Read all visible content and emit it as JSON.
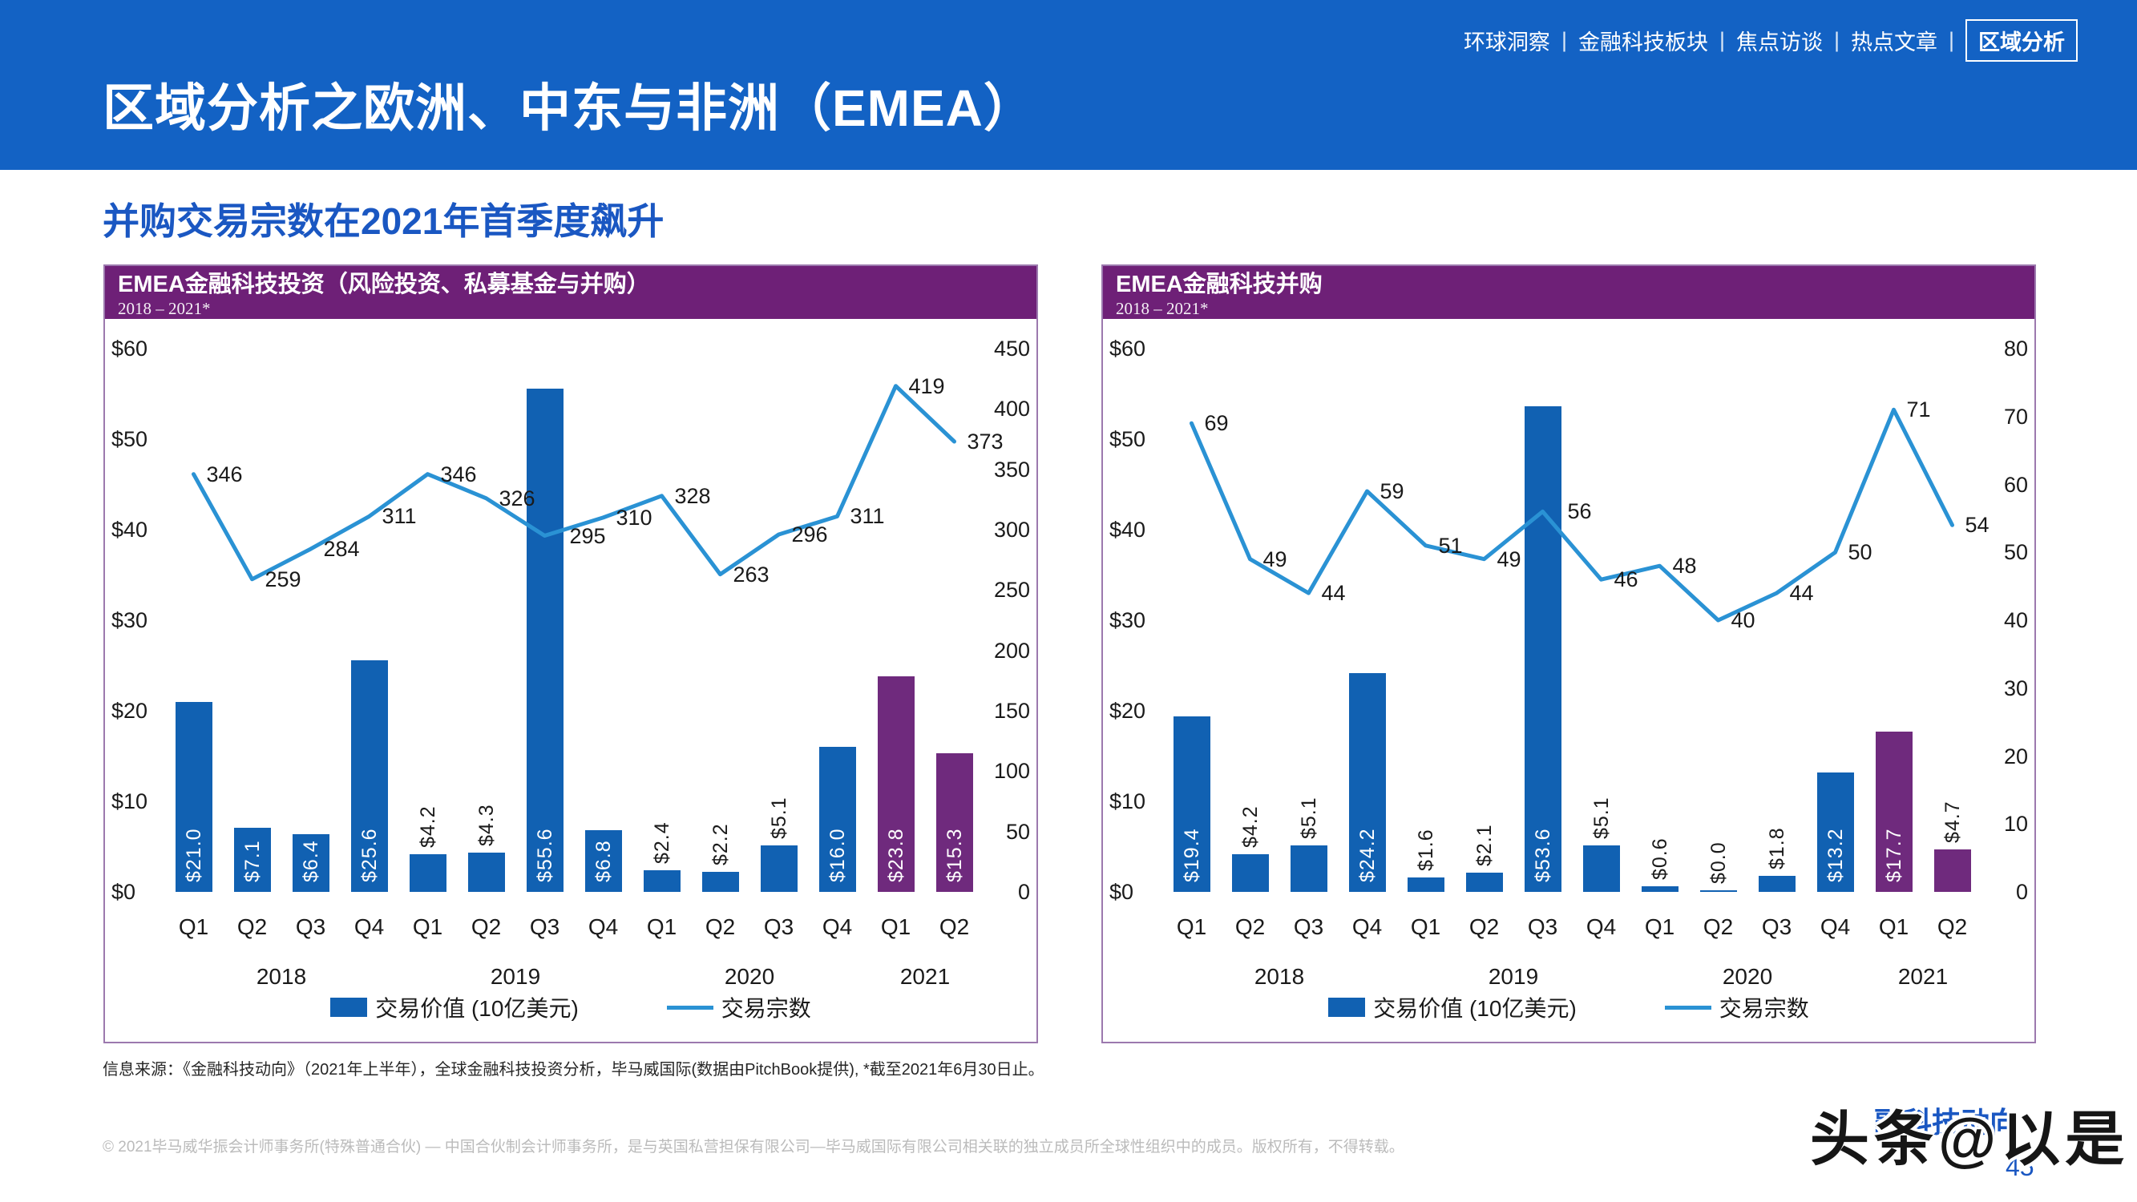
{
  "nav": {
    "items": [
      "环球洞察",
      "金融科技板块",
      "焦点访谈",
      "热点文章"
    ],
    "active": "区域分析",
    "separator": "|"
  },
  "header": {
    "title": "区域分析之欧洲、中东与非洲（EMEA）"
  },
  "subtitle": "并购交易宗数在2021年首季度飙升",
  "colors": {
    "banner_blue": "#1362C4",
    "accent_blue": "#1A57C2",
    "header_purple": "#6E2077",
    "bar_blue": "#1161B2",
    "bar_purple": "#6F2A7D",
    "line_blue": "#2A92D4",
    "panel_border": "#9C79AE"
  },
  "chart_data": [
    {
      "type": "bar+line",
      "title": "EMEA金融科技投资（风险投资、私募基金与并购）",
      "subtitle": "2018 – 2021*",
      "categories": [
        "Q1",
        "Q2",
        "Q3",
        "Q4",
        "Q1",
        "Q2",
        "Q3",
        "Q4",
        "Q1",
        "Q2",
        "Q3",
        "Q4",
        "Q1",
        "Q2"
      ],
      "year_groups": [
        {
          "label": "2018",
          "span": 4
        },
        {
          "label": "2019",
          "span": 4
        },
        {
          "label": "2020",
          "span": 4
        },
        {
          "label": "2021",
          "span": 2
        }
      ],
      "left_axis": {
        "ticks": [
          "$60",
          "$50",
          "$40",
          "$30",
          "$20",
          "$10",
          "$0"
        ],
        "max": 60
      },
      "right_axis": {
        "ticks": [
          450,
          400,
          350,
          300,
          250,
          200,
          150,
          100,
          50,
          0
        ],
        "max": 450
      },
      "bars": {
        "name": "交易价值 (10亿美元)",
        "values": [
          21.0,
          7.1,
          6.4,
          25.6,
          4.2,
          4.3,
          55.6,
          6.8,
          2.4,
          2.2,
          5.1,
          16.0,
          23.8,
          15.3
        ],
        "labels": [
          "$21.0",
          "$7.1",
          "$6.4",
          "$25.6",
          "$4.2",
          "$4.3",
          "$55.6",
          "$6.8",
          "$2.4",
          "$2.2",
          "$5.1",
          "$16.0",
          "$23.8",
          "$15.3"
        ],
        "label_inside": [
          1,
          1,
          1,
          1,
          0,
          0,
          1,
          1,
          0,
          0,
          0,
          1,
          1,
          1
        ],
        "purple_from": 12
      },
      "line": {
        "name": "交易宗数",
        "values": [
          346,
          259,
          284,
          311,
          346,
          326,
          295,
          310,
          328,
          263,
          296,
          311,
          419,
          373
        ]
      }
    },
    {
      "type": "bar+line",
      "title": "EMEA金融科技并购",
      "subtitle": "2018 – 2021*",
      "categories": [
        "Q1",
        "Q2",
        "Q3",
        "Q4",
        "Q1",
        "Q2",
        "Q3",
        "Q4",
        "Q1",
        "Q2",
        "Q3",
        "Q4",
        "Q1",
        "Q2"
      ],
      "year_groups": [
        {
          "label": "2018",
          "span": 4
        },
        {
          "label": "2019",
          "span": 4
        },
        {
          "label": "2020",
          "span": 4
        },
        {
          "label": "2021",
          "span": 2
        }
      ],
      "left_axis": {
        "ticks": [
          "$60",
          "$50",
          "$40",
          "$30",
          "$20",
          "$10",
          "$0"
        ],
        "max": 60
      },
      "right_axis": {
        "ticks": [
          80,
          70,
          60,
          50,
          40,
          30,
          20,
          10,
          0
        ],
        "max": 80
      },
      "bars": {
        "name": "交易价值 (10亿美元)",
        "values": [
          19.4,
          4.2,
          5.1,
          24.2,
          1.6,
          2.1,
          53.6,
          5.1,
          0.6,
          0.0,
          1.8,
          13.2,
          17.7,
          4.7
        ],
        "labels": [
          "$19.4",
          "$4.2",
          "$5.1",
          "$24.2",
          "$1.6",
          "$2.1",
          "$53.6",
          "$5.1",
          "$0.6",
          "$0.0",
          "$1.8",
          "$13.2",
          "$17.7",
          "$4.7"
        ],
        "label_inside": [
          1,
          0,
          0,
          1,
          0,
          0,
          1,
          0,
          0,
          0,
          0,
          1,
          1,
          0
        ],
        "purple_from": 12
      },
      "line": {
        "name": "交易宗数",
        "values": [
          69,
          49,
          44,
          59,
          51,
          49,
          56,
          46,
          48,
          40,
          44,
          50,
          71,
          54
        ]
      }
    }
  ],
  "footer": {
    "source": "信息来源：《金融科技动向》（2021年上半年），全球金融科技投资分析，毕马威国际(数据由PitchBook提供), *截至2021年6月30日止。",
    "copyright": "© 2021毕马威华振会计师事务所(特殊普通合伙) — 中国合伙制会计师事务所，是与英国私营担保有限公司—毕马威国际有限公司相关联的独立成员所全球性组织中的成员。版权所有，不得转载。",
    "page_number": "45",
    "watermark": "头条@以是",
    "watermark_back": "融科技动向"
  }
}
